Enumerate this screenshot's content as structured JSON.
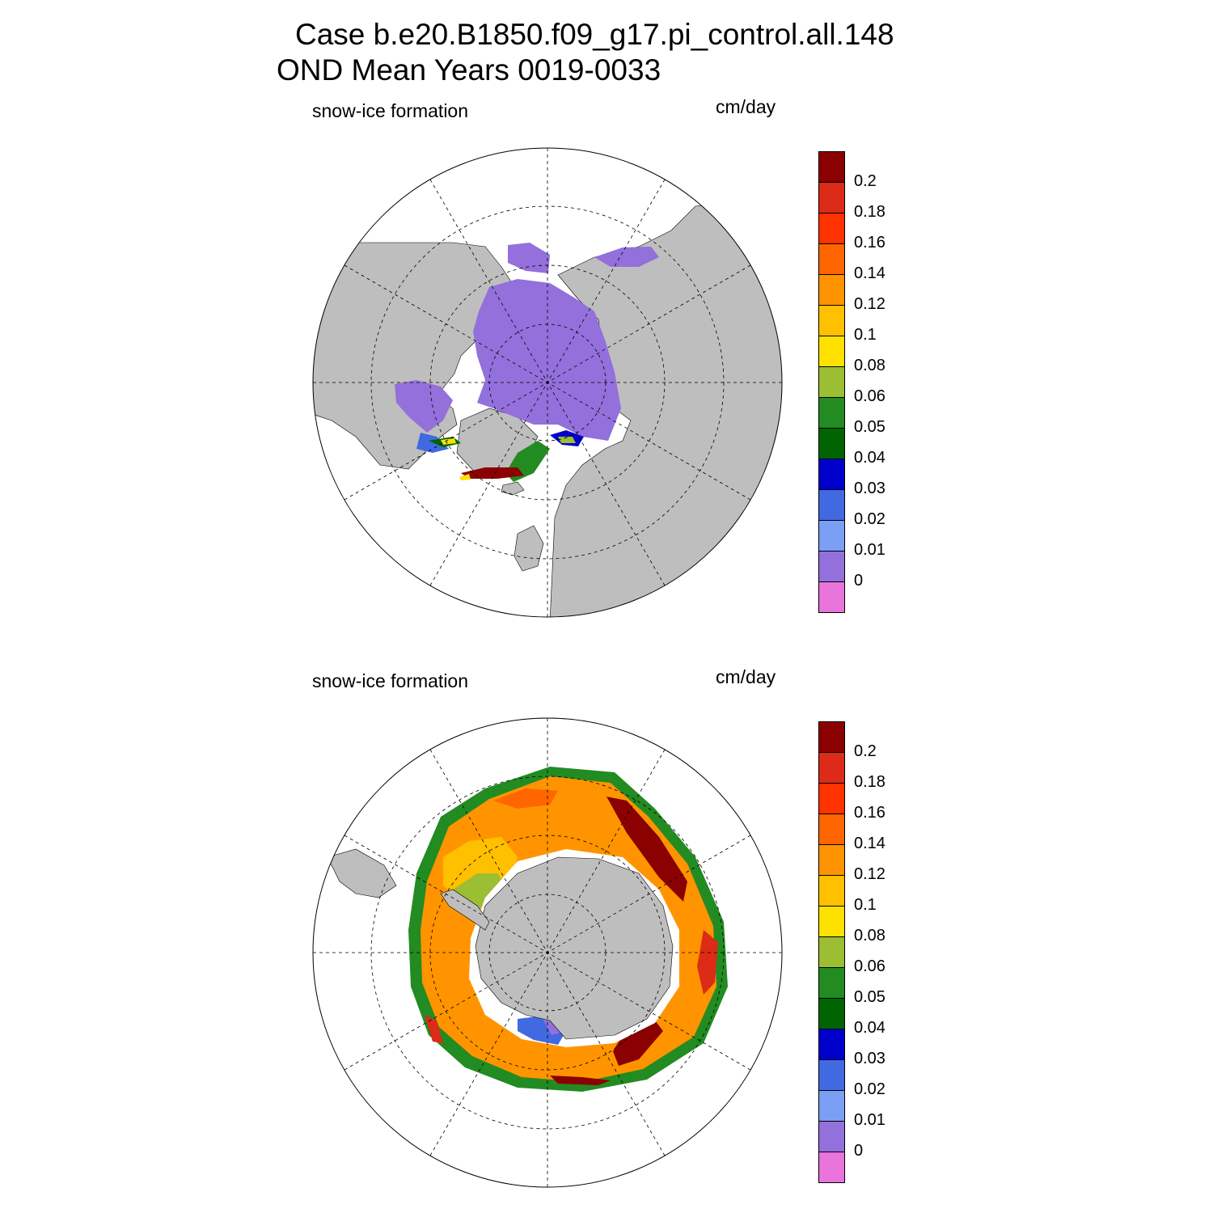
{
  "title": {
    "line1": "Case b.e20.B1850.f09_g17.pi_control.all.148",
    "line2": "OND Mean   Years 0019-0033"
  },
  "panels": [
    {
      "hemisphere": "north",
      "variable_label": "snow-ice formation",
      "units_label": "cm/day",
      "colorbar_labels": [
        "0.2",
        "0.18",
        "0.16",
        "0.14",
        "0.12",
        "0.1",
        "0.08",
        "0.06",
        "0.05",
        "0.04",
        "0.03",
        "0.02",
        "0.01",
        "0"
      ]
    },
    {
      "hemisphere": "south",
      "variable_label": "snow-ice formation",
      "units_label": "cm/day",
      "colorbar_labels": [
        "0.2",
        "0.18",
        "0.16",
        "0.14",
        "0.12",
        "0.1",
        "0.08",
        "0.06",
        "0.05",
        "0.04",
        "0.03",
        "0.02",
        "0.01",
        "0"
      ]
    }
  ],
  "colorbar_colors": [
    "#8b0000",
    "#dc2b16",
    "#ff3300",
    "#ff6600",
    "#ff9400",
    "#ffc000",
    "#ffe100",
    "#9bbe32",
    "#228b22",
    "#006400",
    "#0000cd",
    "#4169e1",
    "#7b9ff4",
    "#9370db",
    "#e874dc"
  ],
  "land_color": "#bebebe",
  "ocean_color": "#ffffff"
}
